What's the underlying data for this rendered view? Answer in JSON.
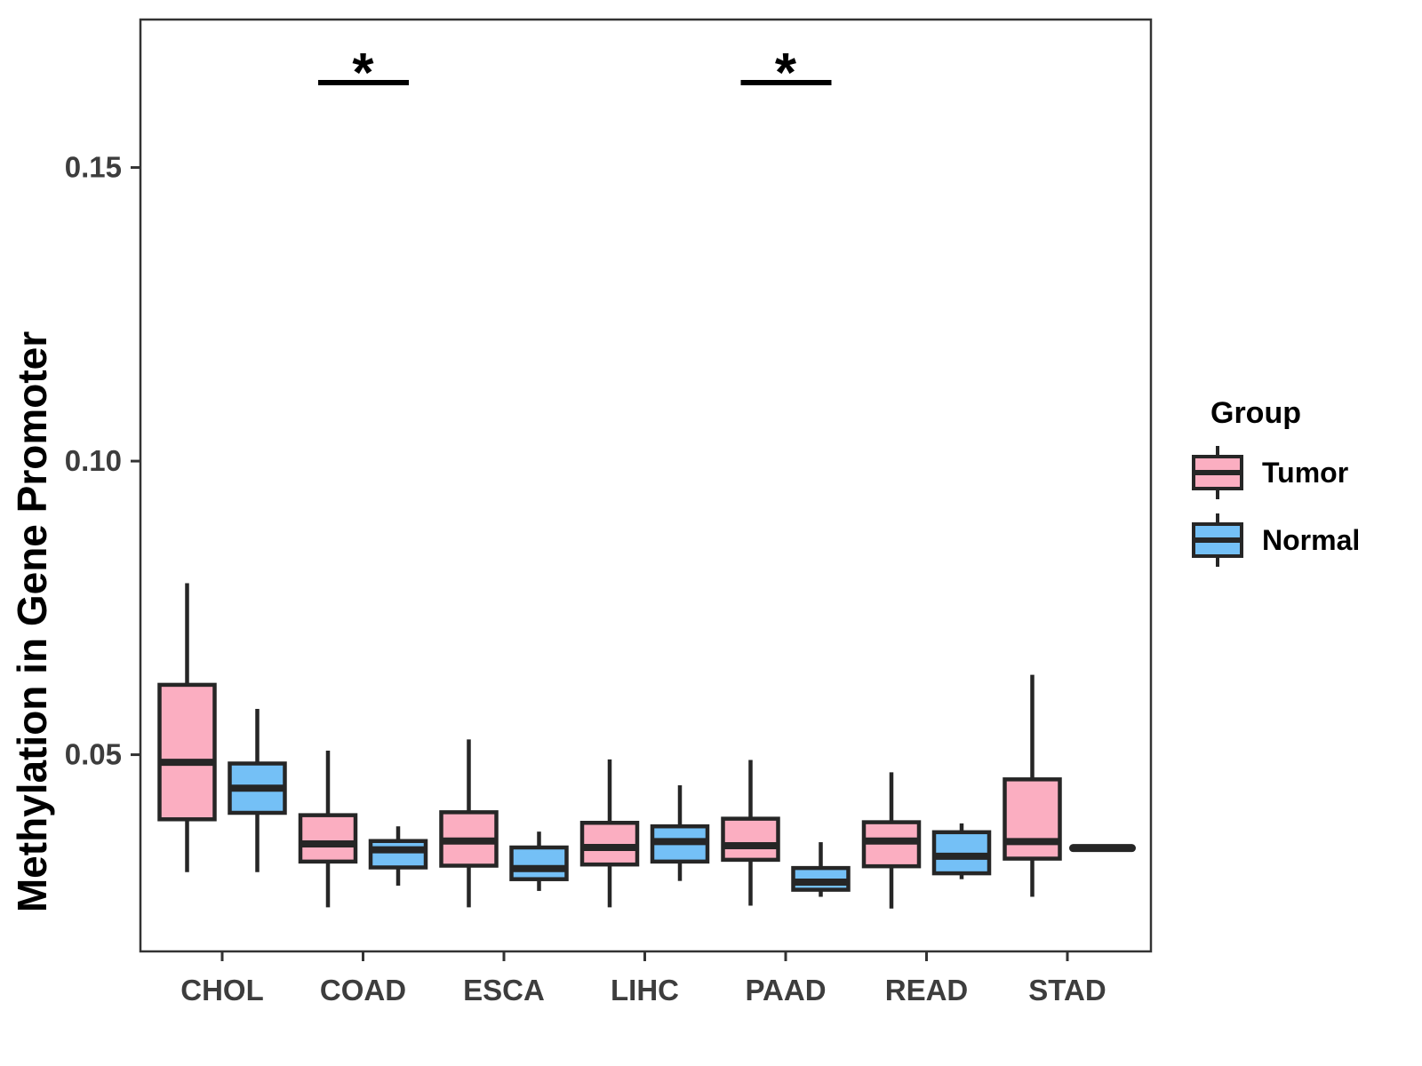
{
  "legend": {
    "title": "Group",
    "items": [
      {
        "label": "Tumor"
      },
      {
        "label": "Normal"
      }
    ]
  },
  "chart_data": {
    "type": "boxplot",
    "title": "",
    "xlabel": "",
    "ylabel": "Methylation in Gene Promoter",
    "categories": [
      "CHOL",
      "COAD",
      "ESCA",
      "LIHC",
      "PAAD",
      "READ",
      "STAD"
    ],
    "yticks": [
      0.05,
      0.1,
      0.15
    ],
    "ytick_labels": [
      "0.05",
      "0.10",
      "0.15"
    ],
    "ylim": [
      0.0165,
      0.1752
    ],
    "grid": false,
    "legend_position": "right",
    "box_outline_color": "#262626",
    "axis_text_color": "#3d3d3d",
    "panel_border_color": "#333333",
    "significance_color": "#000000",
    "series": [
      {
        "name": "Tumor",
        "color": "#FBAEC1",
        "boxes": [
          {
            "category": "CHOL",
            "whisker_low": 0.03,
            "q1": 0.039,
            "median": 0.0487,
            "q3": 0.0619,
            "whisker_high": 0.0792
          },
          {
            "category": "COAD",
            "whisker_low": 0.024,
            "q1": 0.0318,
            "median": 0.0348,
            "q3": 0.0397,
            "whisker_high": 0.0507
          },
          {
            "category": "ESCA",
            "whisker_low": 0.024,
            "q1": 0.0311,
            "median": 0.0353,
            "q3": 0.0402,
            "whisker_high": 0.0526
          },
          {
            "category": "LIHC",
            "whisker_low": 0.024,
            "q1": 0.0313,
            "median": 0.0342,
            "q3": 0.0384,
            "whisker_high": 0.0492
          },
          {
            "category": "PAAD",
            "whisker_low": 0.0243,
            "q1": 0.0321,
            "median": 0.0345,
            "q3": 0.0391,
            "whisker_high": 0.0491
          },
          {
            "category": "READ",
            "whisker_low": 0.0238,
            "q1": 0.031,
            "median": 0.0353,
            "q3": 0.0385,
            "whisker_high": 0.047
          },
          {
            "category": "STAD",
            "whisker_low": 0.0258,
            "q1": 0.0323,
            "median": 0.0352,
            "q3": 0.0458,
            "whisker_high": 0.0636
          }
        ]
      },
      {
        "name": "Normal",
        "color": "#74C0F6",
        "boxes": [
          {
            "category": "CHOL",
            "whisker_low": 0.03,
            "q1": 0.0401,
            "median": 0.0443,
            "q3": 0.0485,
            "whisker_high": 0.0578
          },
          {
            "category": "COAD",
            "whisker_low": 0.0277,
            "q1": 0.0308,
            "median": 0.0338,
            "q3": 0.0353,
            "whisker_high": 0.0378
          },
          {
            "category": "ESCA",
            "whisker_low": 0.0268,
            "q1": 0.0288,
            "median": 0.0306,
            "q3": 0.0342,
            "whisker_high": 0.0369
          },
          {
            "category": "LIHC",
            "whisker_low": 0.0285,
            "q1": 0.0318,
            "median": 0.0352,
            "q3": 0.0378,
            "whisker_high": 0.0448
          },
          {
            "category": "PAAD",
            "whisker_low": 0.0258,
            "q1": 0.027,
            "median": 0.0283,
            "q3": 0.0307,
            "whisker_high": 0.0351
          },
          {
            "category": "READ",
            "whisker_low": 0.0288,
            "q1": 0.0298,
            "median": 0.0327,
            "q3": 0.0368,
            "whisker_high": 0.0383
          },
          {
            "category": "STAD",
            "whisker_low": 0.0341,
            "q1": 0.0341,
            "median": 0.0341,
            "q3": 0.0341,
            "whisker_high": 0.0341
          }
        ]
      }
    ],
    "significance": [
      {
        "category": "COAD",
        "symbol": "*"
      },
      {
        "category": "PAAD",
        "symbol": "*"
      }
    ]
  }
}
